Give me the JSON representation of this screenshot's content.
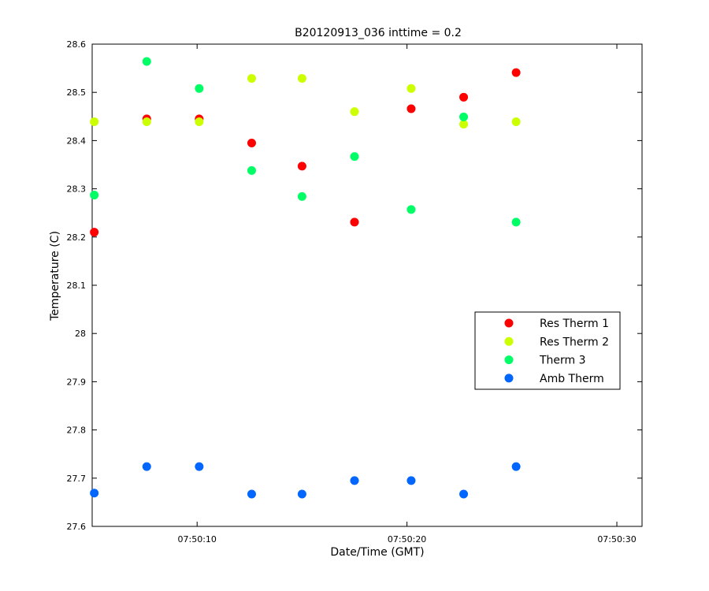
{
  "chart_data": {
    "type": "scatter",
    "title": "B20120913_036 inttime = 0.2",
    "xlabel": "Date/Time (GMT)",
    "ylabel": "Temperature (C)",
    "xlim": [
      5.0,
      31.2
    ],
    "ylim": [
      27.6,
      28.6
    ],
    "x_unit": "seconds after 07:50:00",
    "x_ticks": [
      {
        "value": 10,
        "label": "07:50:10"
      },
      {
        "value": 20,
        "label": "07:50:20"
      },
      {
        "value": 30,
        "label": "07:50:30"
      }
    ],
    "y_ticks": [
      {
        "value": 27.6,
        "label": "27.6"
      },
      {
        "value": 27.7,
        "label": "27.7"
      },
      {
        "value": 27.8,
        "label": "27.8"
      },
      {
        "value": 27.9,
        "label": "27.9"
      },
      {
        "value": 28.0,
        "label": "28"
      },
      {
        "value": 28.1,
        "label": "28.1"
      },
      {
        "value": 28.2,
        "label": "28.2"
      },
      {
        "value": 28.3,
        "label": "28.3"
      },
      {
        "value": 28.4,
        "label": "28.4"
      },
      {
        "value": 28.5,
        "label": "28.5"
      },
      {
        "value": 28.6,
        "label": "28.6"
      }
    ],
    "grid": false,
    "legend_position": "right",
    "series": [
      {
        "name": "Res Therm 1",
        "color": "#ff0000",
        "x": [
          5.1,
          7.6,
          10.1,
          12.6,
          15.0,
          17.5,
          20.2,
          22.7,
          25.2
        ],
        "y": [
          28.21,
          28.445,
          28.445,
          28.395,
          28.347,
          28.231,
          28.466,
          28.49,
          28.541
        ]
      },
      {
        "name": "Res Therm 2",
        "color": "#ccff00",
        "x": [
          5.1,
          7.6,
          10.1,
          12.6,
          15.0,
          17.5,
          20.2,
          22.7,
          25.2
        ],
        "y": [
          28.439,
          28.439,
          28.439,
          28.529,
          28.529,
          28.46,
          28.508,
          28.434,
          28.439
        ]
      },
      {
        "name": "Therm 3",
        "color": "#00ff66",
        "x": [
          5.1,
          7.6,
          10.1,
          12.6,
          15.0,
          17.5,
          20.2,
          22.7,
          25.2
        ],
        "y": [
          28.287,
          28.564,
          28.508,
          28.338,
          28.284,
          28.367,
          28.257,
          28.449,
          28.231
        ]
      },
      {
        "name": "Amb Therm",
        "color": "#0066ff",
        "x": [
          5.1,
          7.6,
          10.1,
          12.6,
          15.0,
          17.5,
          20.2,
          22.7,
          25.2
        ],
        "y": [
          27.669,
          27.724,
          27.724,
          27.667,
          27.667,
          27.695,
          27.695,
          27.667,
          27.724
        ]
      }
    ]
  }
}
